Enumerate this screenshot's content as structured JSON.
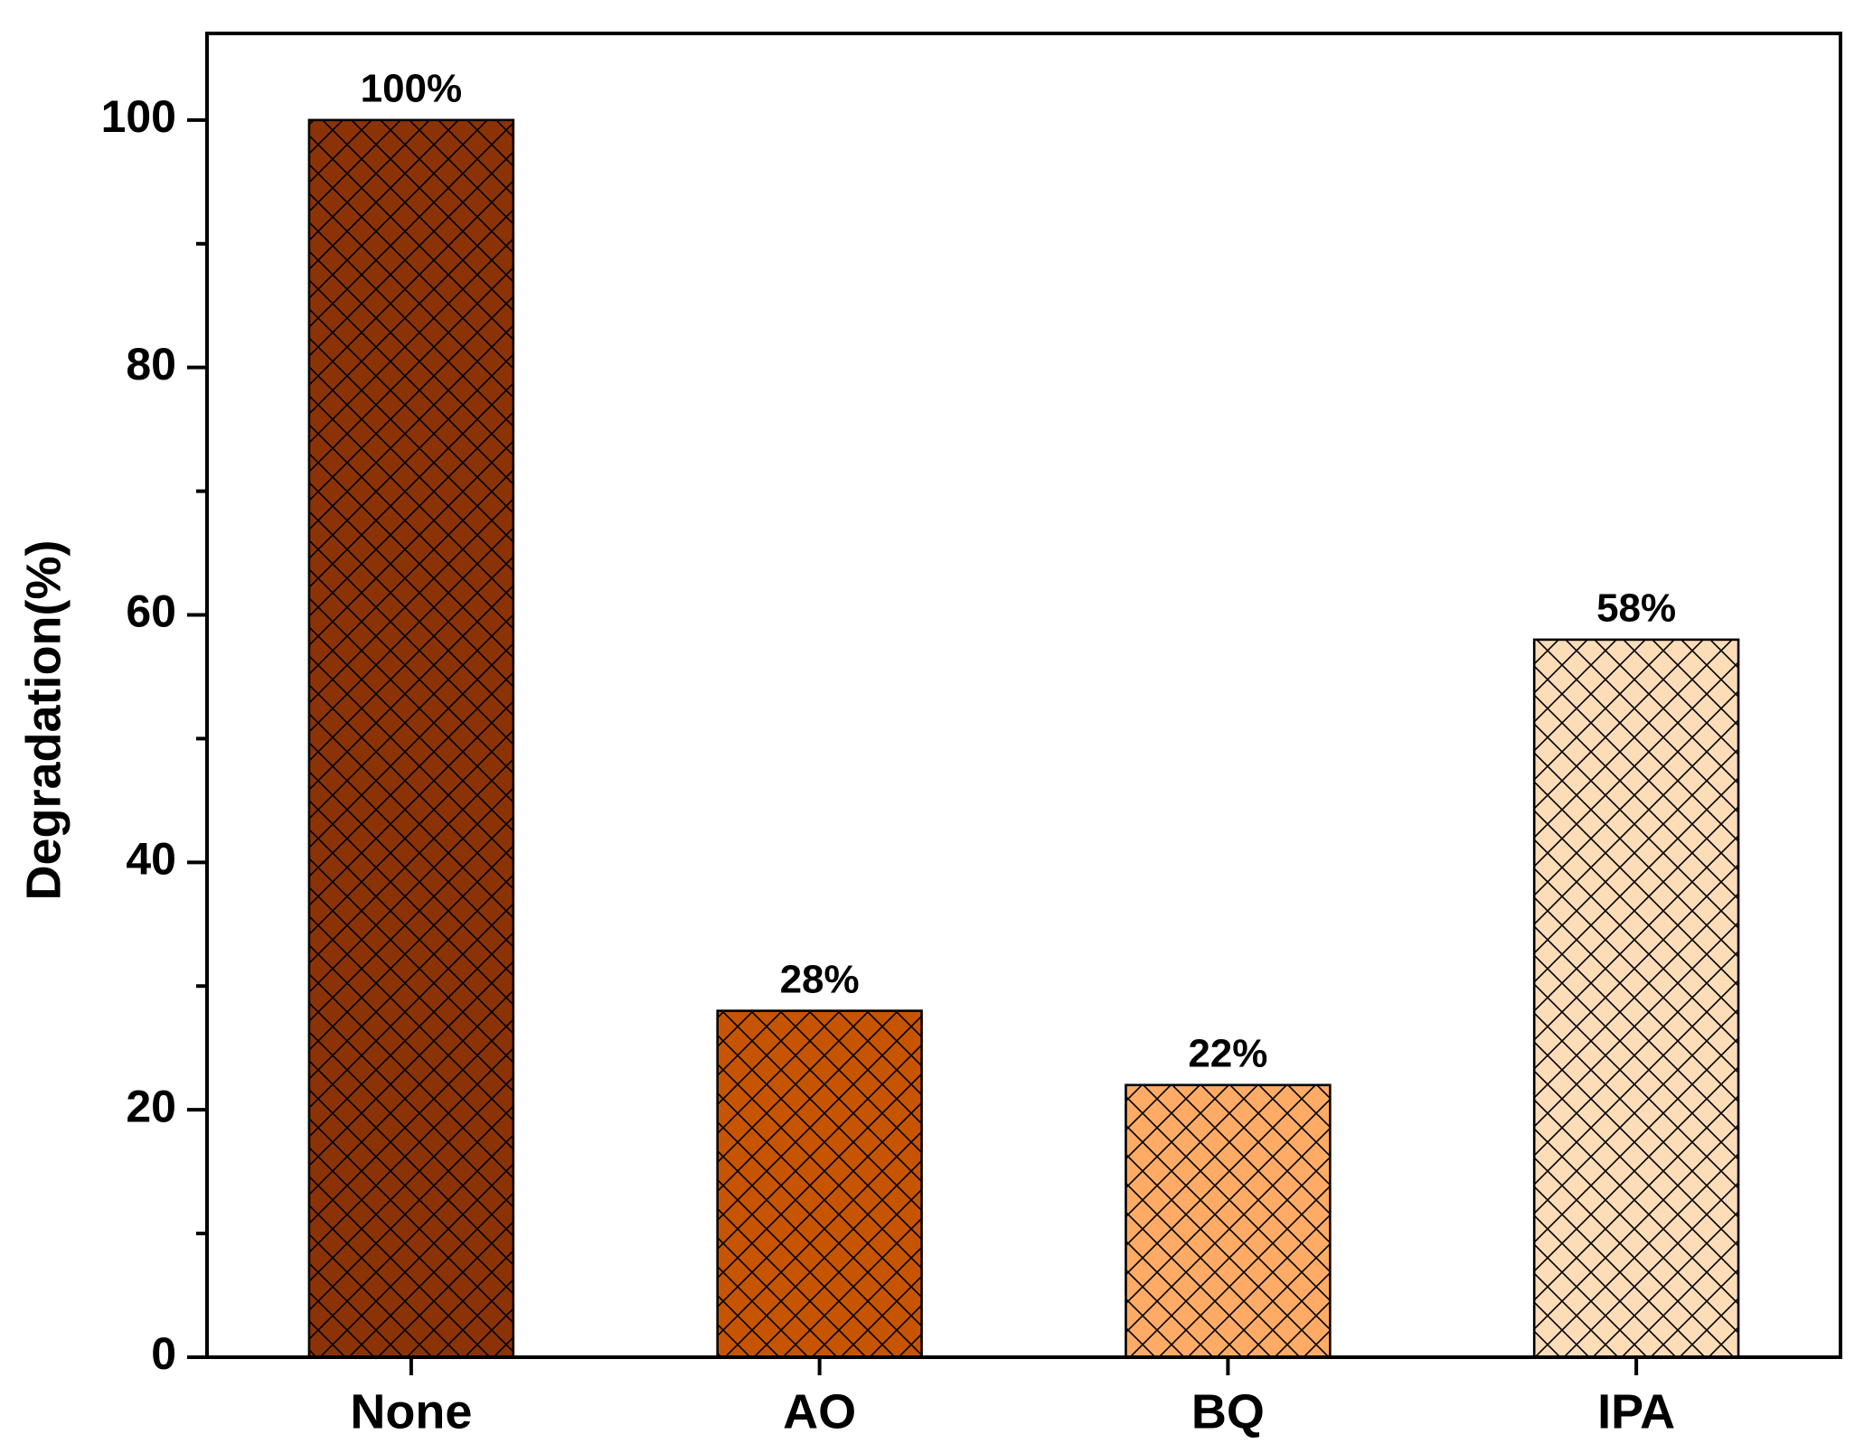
{
  "chart_data": {
    "type": "bar",
    "y_label": "Degradation(%)",
    "categories": [
      "None",
      "AO",
      "BQ",
      "IPA"
    ],
    "values": [
      100,
      28,
      22,
      58
    ],
    "value_labels": [
      "100%",
      "28%",
      "22%",
      "58%"
    ],
    "colors": [
      "#8b3306",
      "#c65400",
      "#ffab66",
      "#fddcb8"
    ],
    "hatch": "crosshatch",
    "ylim": [
      0,
      107
    ],
    "yticks": [
      0,
      20,
      40,
      60,
      80,
      100
    ],
    "minor_yticks": [
      10,
      30,
      50,
      70,
      90
    ],
    "grid": false
  }
}
